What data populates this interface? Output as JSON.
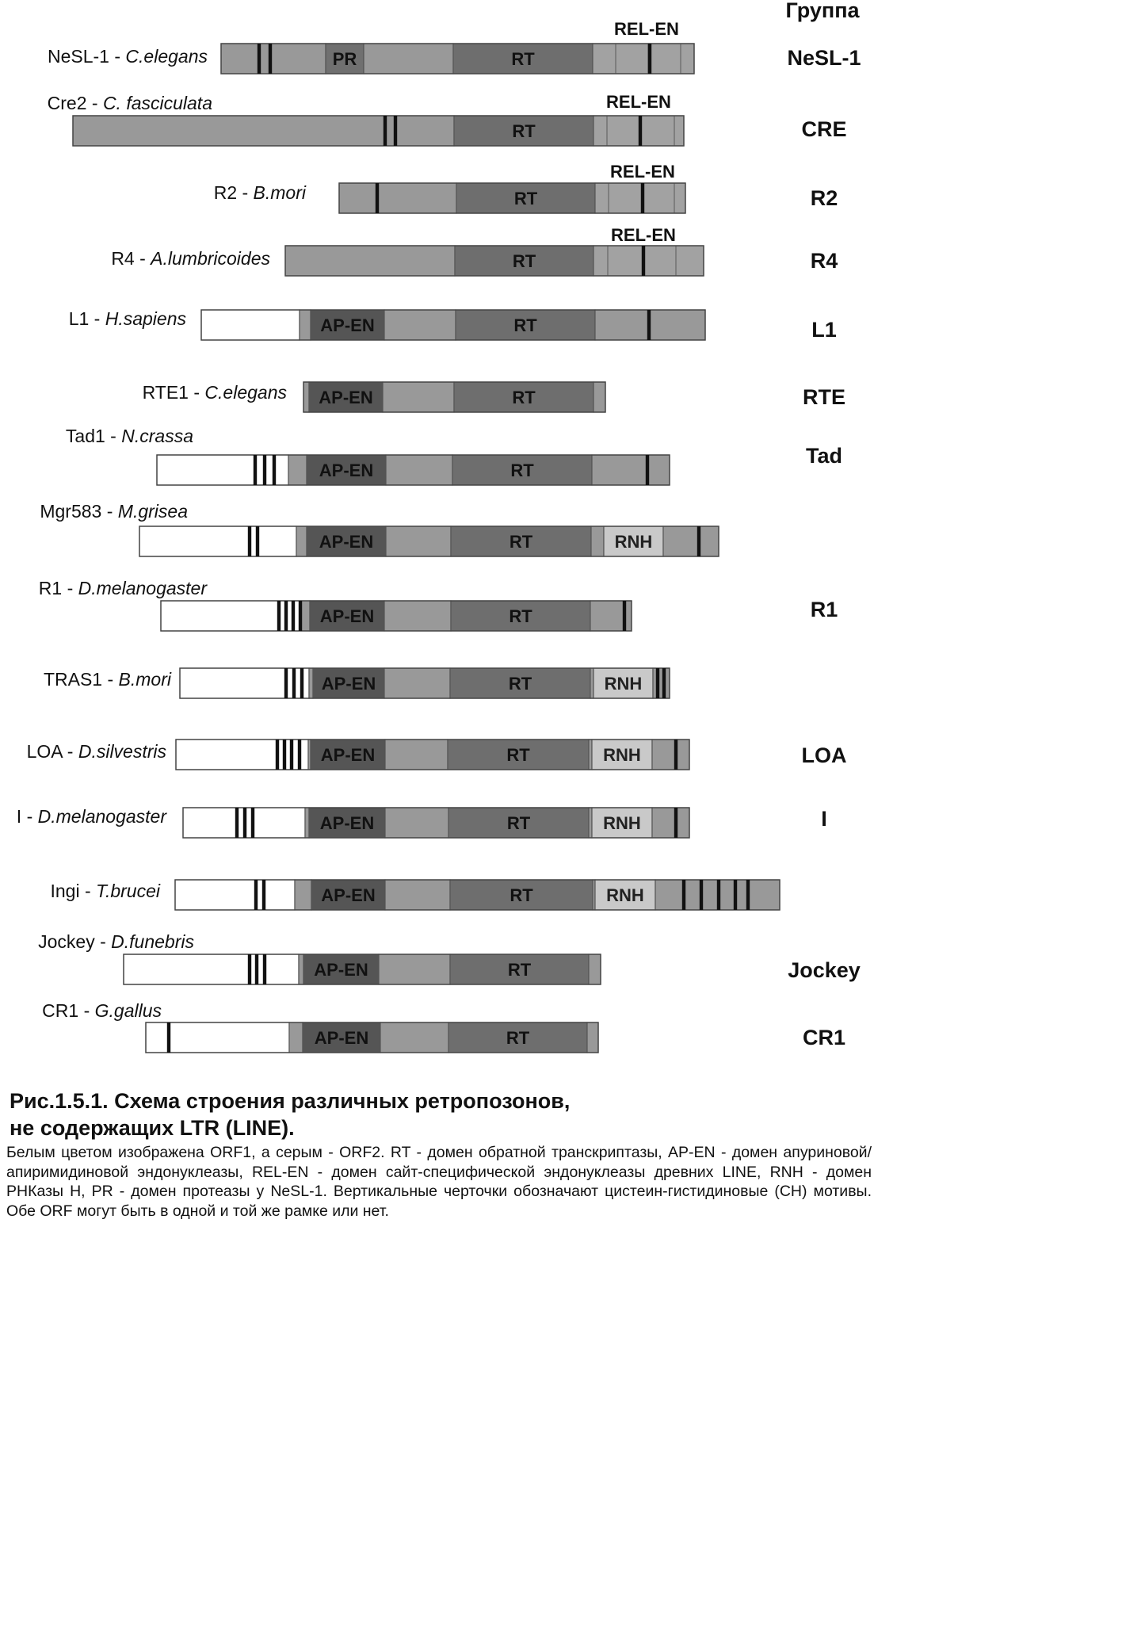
{
  "header": {
    "group_label": "Группа"
  },
  "colors": {
    "orf1": "#ffffff",
    "orf2": "#999999",
    "rt": "#6e6e6e",
    "ap_en": "#555555",
    "pr": "#707070",
    "rnh": "#c9c9c9",
    "rel_en": "#a2a2a2",
    "ch_motif": "#111111",
    "outline": "#555555"
  },
  "rows": [
    {
      "label_plain": "NeSL-1 - ",
      "label_italic": "C.elegans",
      "group": "NeSL-1",
      "rel_label": "REL-EN",
      "domains": [
        {
          "type": "pr",
          "text": "PR"
        },
        {
          "type": "rt",
          "text": "RT"
        }
      ]
    },
    {
      "label_plain": "Cre2 - ",
      "label_italic": "C. fasciculata",
      "group": "CRE",
      "rel_label": "REL-EN",
      "domains": [
        {
          "type": "rt",
          "text": "RT"
        }
      ]
    },
    {
      "label_plain": "R2 - ",
      "label_italic": "B.mori",
      "group": "R2",
      "rel_label": "REL-EN",
      "domains": [
        {
          "type": "rt",
          "text": "RT"
        }
      ]
    },
    {
      "label_plain": "R4 - ",
      "label_italic": "A.lumbricoides",
      "group": "R4",
      "rel_label": "REL-EN",
      "domains": [
        {
          "type": "rt",
          "text": "RT"
        }
      ]
    },
    {
      "label_plain": "L1 - ",
      "label_italic": "H.sapiens",
      "group": "L1",
      "rel_label": "",
      "domains": [
        {
          "type": "ap",
          "text": "AP-EN"
        },
        {
          "type": "rt",
          "text": "RT"
        }
      ]
    },
    {
      "label_plain": "RTE1 - ",
      "label_italic": "C.elegans",
      "group": "RTE",
      "rel_label": "",
      "domains": [
        {
          "type": "ap",
          "text": "AP-EN"
        },
        {
          "type": "rt",
          "text": "RT"
        }
      ]
    },
    {
      "label_plain": "Tad1 - ",
      "label_italic": "N.crassa",
      "group": "Tad",
      "rel_label": "",
      "domains": [
        {
          "type": "ap",
          "text": "AP-EN"
        },
        {
          "type": "rt",
          "text": "RT"
        }
      ]
    },
    {
      "label_plain": "Mgr583 - ",
      "label_italic": "M.grisea",
      "group": "",
      "rel_label": "",
      "domains": [
        {
          "type": "ap",
          "text": "AP-EN"
        },
        {
          "type": "rt",
          "text": "RT"
        },
        {
          "type": "rnh",
          "text": "RNH"
        }
      ]
    },
    {
      "label_plain": "R1 - ",
      "label_italic": "D.melanogaster",
      "group": "R1",
      "rel_label": "",
      "domains": [
        {
          "type": "ap",
          "text": "AP-EN"
        },
        {
          "type": "rt",
          "text": "RT"
        }
      ]
    },
    {
      "label_plain": "TRAS1 - ",
      "label_italic": "B.mori",
      "group": "",
      "rel_label": "",
      "domains": [
        {
          "type": "ap",
          "text": "AP-EN"
        },
        {
          "type": "rt",
          "text": "RT"
        },
        {
          "type": "rnh",
          "text": "RNH"
        }
      ]
    },
    {
      "label_plain": "LOA - ",
      "label_italic": "D.silvestris",
      "group": "LOA",
      "rel_label": "",
      "domains": [
        {
          "type": "ap",
          "text": "AP-EN"
        },
        {
          "type": "rt",
          "text": "RT"
        },
        {
          "type": "rnh",
          "text": "RNH"
        }
      ]
    },
    {
      "label_plain": "I - ",
      "label_italic": "D.melanogaster",
      "group": "I",
      "rel_label": "",
      "domains": [
        {
          "type": "ap",
          "text": "AP-EN"
        },
        {
          "type": "rt",
          "text": "RT"
        },
        {
          "type": "rnh",
          "text": "RNH"
        }
      ]
    },
    {
      "label_plain": "Ingi - ",
      "label_italic": "T.brucei",
      "group": "",
      "rel_label": "",
      "domains": [
        {
          "type": "ap",
          "text": "AP-EN"
        },
        {
          "type": "rt",
          "text": "RT"
        },
        {
          "type": "rnh",
          "text": "RNH"
        }
      ]
    },
    {
      "label_plain": "Jockey - ",
      "label_italic": "D.funebris",
      "group": "Jockey",
      "rel_label": "",
      "domains": [
        {
          "type": "ap",
          "text": "AP-EN"
        },
        {
          "type": "rt",
          "text": "RT"
        }
      ]
    },
    {
      "label_plain": "CR1 - ",
      "label_italic": "G.gallus",
      "group": "CR1",
      "rel_label": "",
      "domains": [
        {
          "type": "ap",
          "text": "AP-EN"
        },
        {
          "type": "rt",
          "text": "RT"
        }
      ]
    }
  ],
  "caption": {
    "title_line1": "Рис.1.5.1. Схема строения различных ретропозонов,",
    "title_line2": "не содержащих LTR (LINE).",
    "body": "Белым цветом изображена ORF1, а серым - ORF2. RT - домен обратной транскриптазы, AP-EN - домен апуриновой/апиримидиновой эндонуклеазы, REL-EN - домен сайт-специфической эндонуклеазы древних LINE, RNH - домен РНКазы Н, PR - домен протеазы у NeSL-1. Вертикальные черточки обозначают цистеин-гистидиновые (CH) мотивы. Обе ORF могут быть в одной и той же рамке или нет."
  }
}
